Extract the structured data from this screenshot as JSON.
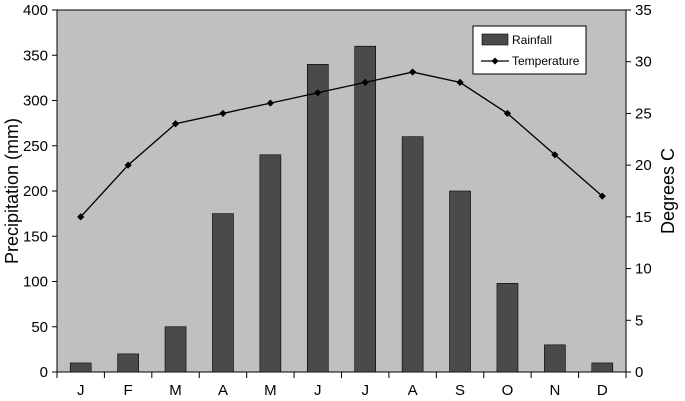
{
  "chart_data": {
    "type": "bar",
    "categories": [
      "J",
      "F",
      "M",
      "A",
      "M",
      "J",
      "J",
      "A",
      "S",
      "O",
      "N",
      "D"
    ],
    "series": [
      {
        "name": "Rainfall",
        "type": "bar",
        "axis": "left",
        "color": "#4a4a4a",
        "values": [
          10,
          20,
          50,
          175,
          240,
          340,
          360,
          260,
          200,
          98,
          30,
          10
        ]
      },
      {
        "name": "Temperature",
        "type": "line",
        "axis": "right",
        "color": "#000000",
        "marker": "diamond",
        "values": [
          15,
          20,
          24,
          25,
          26,
          27,
          28,
          29,
          28,
          25,
          21,
          17
        ]
      }
    ],
    "ylabel": "Precipitation (mm)",
    "y2label": "Degrees C",
    "ylim": [
      0,
      400
    ],
    "y2lim": [
      0,
      35
    ],
    "yticks": [
      0,
      50,
      100,
      150,
      200,
      250,
      300,
      350,
      400
    ],
    "y2ticks": [
      0,
      5,
      10,
      15,
      20,
      25,
      30,
      35
    ],
    "plot_background": "#c0c0c0",
    "grid": false,
    "legend_position": "top-right"
  }
}
